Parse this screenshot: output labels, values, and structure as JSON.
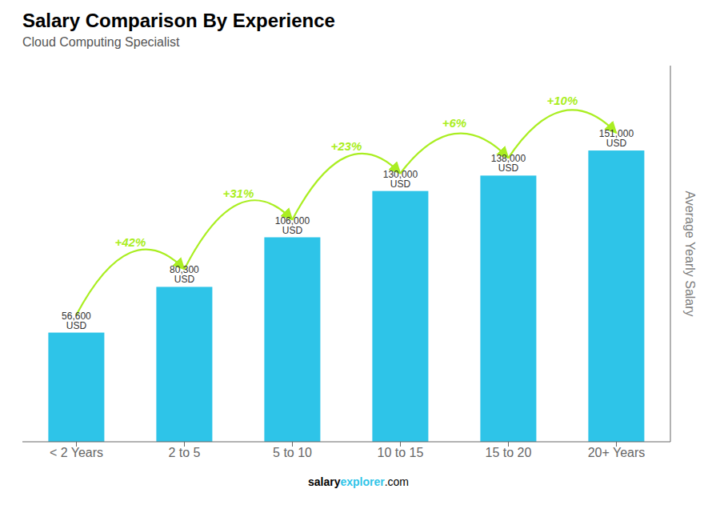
{
  "chart_data": {
    "type": "bar",
    "title": "Salary Comparison By Experience",
    "subtitle": "Cloud Computing Specialist",
    "ylabel": "Average Yearly Salary",
    "categories": [
      "< 2 Years",
      "2 to 5",
      "5 to 10",
      "10 to 15",
      "15 to 20",
      "20+ Years"
    ],
    "values": [
      56600,
      80300,
      106000,
      130000,
      138000,
      151000
    ],
    "value_labels": [
      "56,600 USD",
      "80,300 USD",
      "106,000 USD",
      "130,000 USD",
      "138,000 USD",
      "151,000 USD"
    ],
    "data_labels": true,
    "color": "#2ec4e8",
    "ylim": [
      0,
      195000
    ],
    "tick_labels": "x",
    "grid": false,
    "annotations": [
      {
        "text": "+42%",
        "from": "< 2 Years",
        "to": "2 to 5",
        "color": "#aaee22"
      },
      {
        "text": "+31%",
        "from": "2 to 5",
        "to": "5 to 10",
        "color": "#aaee22"
      },
      {
        "text": "+23%",
        "from": "5 to 10",
        "to": "10 to 15",
        "color": "#aaee22"
      },
      {
        "text": "+6%",
        "from": "10 to 15",
        "to": "15 to 20",
        "color": "#aaee22"
      },
      {
        "text": "+10%",
        "from": "15 to 20",
        "to": "20+ Years",
        "color": "#aaee22"
      }
    ],
    "footer": [
      "salary",
      "explorer",
      ".com"
    ]
  }
}
